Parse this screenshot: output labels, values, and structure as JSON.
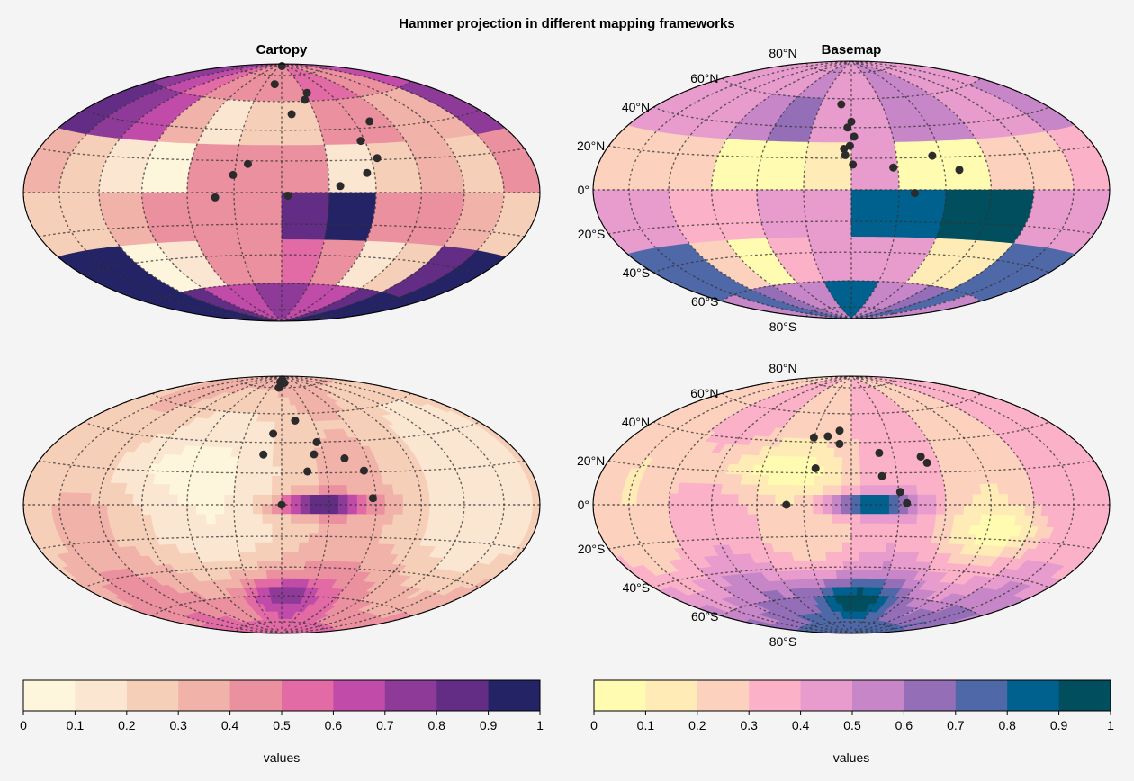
{
  "figure": {
    "title": "Hammer projection in different mapping frameworks"
  },
  "chart_data": {
    "type": "heatmap",
    "projection": "hammer",
    "colorbars": [
      {
        "framework": "Cartopy",
        "label": "values",
        "cmap": "magma-like",
        "levels": [
          0,
          0.1,
          0.2,
          0.3,
          0.4,
          0.5,
          0.6,
          0.7,
          0.8,
          0.9,
          1
        ],
        "tick_labels": [
          "0",
          "0.1",
          "0.2",
          "0.3",
          "0.4",
          "0.5",
          "0.6",
          "0.7",
          "0.8",
          "0.9",
          "1"
        ],
        "colors": [
          "#fef6dc",
          "#fbe6d2",
          "#f6cfb8",
          "#f1b3a9",
          "#eb909e",
          "#e26aa5",
          "#c04ba8",
          "#8e3a99",
          "#632d86",
          "#242365"
        ]
      },
      {
        "framework": "Basemap",
        "label": "values",
        "cmap": "yellow-pink-teal",
        "levels": [
          0,
          0.1,
          0.2,
          0.3,
          0.4,
          0.5,
          0.6,
          0.7,
          0.8,
          0.9,
          1
        ],
        "tick_labels": [
          "0",
          "0.1",
          "0.2",
          "0.3",
          "0.4",
          "0.5",
          "0.6",
          "0.7",
          "0.8",
          "0.9",
          "1"
        ],
        "colors": [
          "#fffcb1",
          "#feebb6",
          "#fcd1be",
          "#fbb1c8",
          "#e79ccd",
          "#c786c8",
          "#946fb8",
          "#4e68a8",
          "#00608e",
          "#004e5e"
        ]
      }
    ],
    "panels": [
      {
        "framework": "Cartopy",
        "title": "Cartopy",
        "style": "pcolor",
        "ticks": false,
        "grid": [
          [
            7,
            6,
            5,
            4,
            4,
            4,
            4,
            5,
            5,
            4,
            4,
            6
          ],
          [
            8,
            7,
            6,
            3,
            1,
            2,
            2,
            4,
            4,
            3,
            3,
            7
          ],
          [
            3,
            2,
            1,
            0,
            4,
            4,
            4,
            1,
            2,
            3,
            2,
            4
          ],
          [
            2,
            2,
            3,
            4,
            4,
            4,
            8,
            9,
            4,
            4,
            3,
            2
          ],
          [
            9,
            9,
            0,
            1,
            4,
            4,
            5,
            4,
            1,
            2,
            8,
            9
          ],
          [
            9,
            9,
            8,
            6,
            6,
            7,
            7,
            6,
            6,
            8,
            9,
            9
          ]
        ],
        "points": [
          [
            3,
            88
          ],
          [
            -12,
            73
          ],
          [
            33,
            66
          ],
          [
            26,
            61
          ],
          [
            73,
            44
          ],
          [
            9,
            51
          ],
          [
            57,
            32
          ],
          [
            64,
            21
          ],
          [
            -22,
            18
          ],
          [
            -31,
            11
          ],
          [
            55,
            12
          ],
          [
            37,
            4
          ],
          [
            -42,
            -3
          ],
          [
            4,
            -2
          ]
        ]
      },
      {
        "framework": "Basemap",
        "title": "Basemap",
        "style": "pcolor",
        "ticks": true,
        "lat_labels": [
          "80°N",
          "60°N",
          "40°N",
          "20°N",
          "0°",
          "20°S",
          "40°S",
          "60°S",
          "80°S"
        ],
        "grid": [
          [
            4,
            4,
            4,
            4,
            5,
            4,
            4,
            5,
            5,
            4,
            4,
            4
          ],
          [
            4,
            4,
            4,
            5,
            6,
            4,
            4,
            5,
            5,
            4,
            4,
            5
          ],
          [
            2,
            2,
            2,
            0,
            0,
            1,
            4,
            0,
            0,
            2,
            2,
            3
          ],
          [
            4,
            4,
            3,
            3,
            4,
            4,
            8,
            8,
            9,
            9,
            4,
            4
          ],
          [
            7,
            7,
            2,
            0,
            3,
            4,
            4,
            4,
            1,
            1,
            7,
            7
          ],
          [
            5,
            7,
            6,
            5,
            5,
            8,
            8,
            5,
            5,
            6,
            7,
            5
          ]
        ],
        "points": [
          [
            40,
            -2
          ],
          [
            70,
            12
          ],
          [
            54,
            21
          ],
          [
            27,
            14
          ],
          [
            2,
            34
          ],
          [
            -1,
            28
          ],
          [
            -5,
            26
          ],
          [
            -4,
            22
          ],
          [
            1,
            16
          ],
          [
            -3,
            40
          ],
          [
            0,
            44
          ],
          [
            -10,
            56
          ]
        ]
      },
      {
        "framework": "Cartopy",
        "title": "",
        "style": "contourf",
        "ticks": false,
        "points": [
          [
            0,
            0
          ],
          [
            58,
            4
          ],
          [
            55,
            21
          ],
          [
            44,
            29
          ],
          [
            17,
            21
          ],
          [
            23,
            32
          ],
          [
            -8,
            80
          ],
          [
            -7,
            85
          ],
          [
            -3,
            84
          ],
          [
            6,
            87
          ],
          [
            12,
            84
          ],
          [
            27,
            40
          ],
          [
            -13,
            32
          ],
          [
            -7,
            46
          ],
          [
            13,
            55
          ]
        ]
      },
      {
        "framework": "Basemap",
        "title": "",
        "style": "contourf",
        "ticks": true,
        "lat_labels": [
          "80°N",
          "60°N",
          "40°N",
          "20°N",
          "0°",
          "20°S",
          "40°S",
          "60°S",
          "80°S"
        ],
        "points": [
          [
            -41,
            0
          ],
          [
            35,
            1
          ],
          [
            31,
            8
          ],
          [
            20,
            18
          ],
          [
            -24,
            23
          ],
          [
            49,
            30
          ],
          [
            20,
            33
          ],
          [
            52,
            26
          ],
          [
            -10,
            48
          ],
          [
            -19,
            44
          ],
          [
            -9,
            39
          ],
          [
            -30,
            43
          ]
        ]
      }
    ]
  }
}
